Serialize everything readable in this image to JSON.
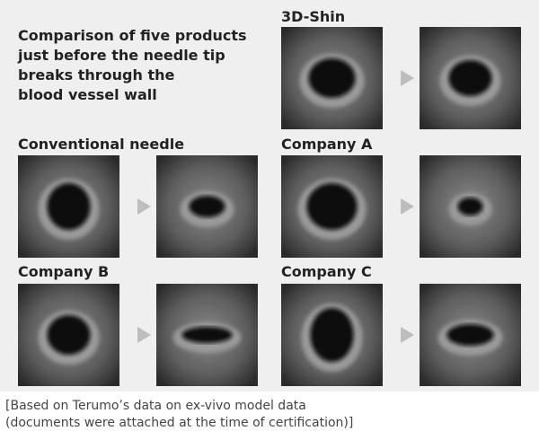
{
  "title": [
    "Comparison of five products",
    "just before the needle tip",
    "breaks through the",
    "blood vessel wall"
  ],
  "panels": [
    {
      "label": "3D-Shin"
    },
    {
      "label": "Conventional needle"
    },
    {
      "label": "Company A"
    },
    {
      "label": "Company B"
    },
    {
      "label": "Company C"
    }
  ],
  "footnote": [
    "[Based on Terumo’s data on ex-vivo model data",
    "(documents were attached at the time of certification)]"
  ]
}
